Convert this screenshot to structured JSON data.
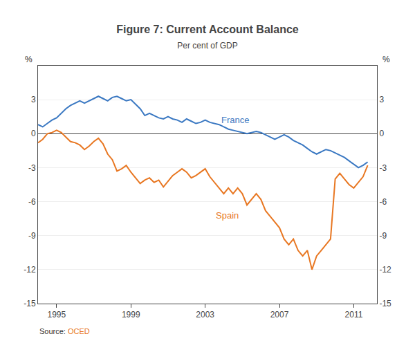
{
  "chart_data": {
    "type": "line",
    "title": "Figure 7: Current Account Balance",
    "subtitle": "Per cent of GDP",
    "ylabel": "%",
    "y2label": "%",
    "x": [
      1994.0,
      1994.25,
      1994.5,
      1994.75,
      1995.0,
      1995.25,
      1995.5,
      1995.75,
      1996.0,
      1996.25,
      1996.5,
      1996.75,
      1997.0,
      1997.25,
      1997.5,
      1997.75,
      1998.0,
      1998.25,
      1998.5,
      1998.75,
      1999.0,
      1999.25,
      1999.5,
      1999.75,
      2000.0,
      2000.25,
      2000.5,
      2000.75,
      2001.0,
      2001.25,
      2001.5,
      2001.75,
      2002.0,
      2002.25,
      2002.5,
      2002.75,
      2003.0,
      2003.25,
      2003.5,
      2003.75,
      2004.0,
      2004.25,
      2004.5,
      2004.75,
      2005.0,
      2005.25,
      2005.5,
      2005.75,
      2006.0,
      2006.25,
      2006.5,
      2006.75,
      2007.0,
      2007.25,
      2007.5,
      2007.75,
      2008.0,
      2008.25,
      2008.5,
      2008.75,
      2009.0,
      2009.25,
      2009.5,
      2009.75,
      2010.0,
      2010.25,
      2010.5,
      2010.75,
      2011.0,
      2011.25,
      2011.5,
      2011.75
    ],
    "series": [
      {
        "name": "France",
        "color": "#3a78c2",
        "values": [
          0.8,
          0.6,
          0.9,
          1.2,
          1.4,
          1.8,
          2.2,
          2.5,
          2.7,
          2.9,
          2.7,
          2.9,
          3.1,
          3.3,
          3.1,
          2.9,
          3.2,
          3.3,
          3.1,
          2.9,
          3.0,
          2.6,
          2.2,
          1.6,
          1.8,
          1.6,
          1.4,
          1.3,
          1.5,
          1.3,
          1.2,
          1.0,
          1.3,
          1.1,
          0.9,
          1.0,
          1.2,
          1.0,
          0.9,
          0.8,
          0.6,
          0.4,
          0.3,
          0.2,
          0.1,
          0.0,
          0.1,
          0.2,
          0.1,
          -0.1,
          -0.3,
          -0.5,
          -0.3,
          -0.1,
          -0.3,
          -0.6,
          -0.8,
          -1.0,
          -1.3,
          -1.6,
          -1.8,
          -1.6,
          -1.4,
          -1.5,
          -1.7,
          -1.9,
          -2.1,
          -2.4,
          -2.7,
          -3.0,
          -2.8,
          -2.5
        ]
      },
      {
        "name": "Spain",
        "color": "#e87722",
        "values": [
          -0.8,
          -0.5,
          0.0,
          0.1,
          0.3,
          0.1,
          -0.3,
          -0.7,
          -0.8,
          -1.0,
          -1.4,
          -1.1,
          -0.7,
          -0.4,
          -0.9,
          -1.8,
          -2.3,
          -3.3,
          -3.1,
          -2.8,
          -3.4,
          -3.9,
          -4.4,
          -4.1,
          -3.9,
          -4.3,
          -4.1,
          -4.7,
          -4.2,
          -3.7,
          -3.4,
          -3.1,
          -3.4,
          -3.9,
          -3.7,
          -3.4,
          -3.1,
          -3.8,
          -4.3,
          -4.8,
          -5.3,
          -4.8,
          -5.3,
          -4.8,
          -5.3,
          -6.3,
          -5.8,
          -5.3,
          -5.8,
          -6.8,
          -7.3,
          -7.8,
          -8.3,
          -9.3,
          -9.8,
          -9.3,
          -10.3,
          -10.8,
          -10.3,
          -12.0,
          -10.8,
          -10.3,
          -9.8,
          -9.3,
          -4.0,
          -3.5,
          -4.0,
          -4.5,
          -4.8,
          -4.3,
          -3.8,
          -2.8
        ]
      }
    ],
    "xlim": [
      1994.0,
      2012.25
    ],
    "xticks": [
      1995,
      1999,
      2003,
      2007,
      2011
    ],
    "ylim": [
      -15,
      6
    ],
    "yticks": [
      -15,
      -12,
      -9,
      -6,
      -3,
      0,
      3
    ],
    "y2lim": [
      -15,
      6
    ],
    "y2ticks": [
      -15,
      -12,
      -9,
      -6,
      -3,
      0,
      3
    ],
    "grid": true,
    "annotations": [
      {
        "text": "France",
        "x": 2003.8,
        "y": 0.65,
        "color": "#3a78c2"
      },
      {
        "text": "Spain",
        "x": 2003.5,
        "y": -7.8,
        "color": "#e87722"
      }
    ],
    "source": [
      {
        "text": "Source:"
      },
      {
        "text": "OCED",
        "color": "#e87722"
      }
    ]
  }
}
